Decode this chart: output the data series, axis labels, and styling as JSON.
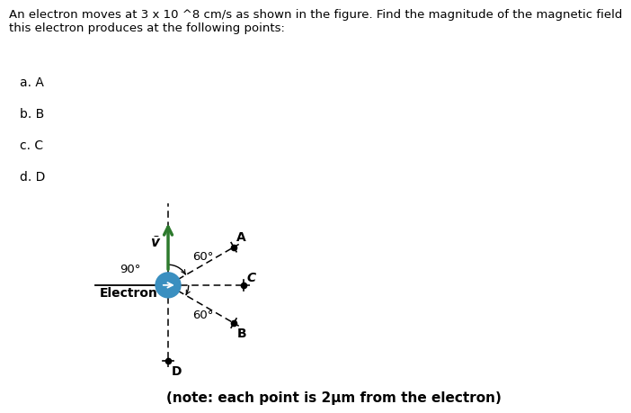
{
  "title_text": "An electron moves at 3 x 10 ^8 cm/s as shown in the figure. Find the magnitude of the magnetic field\nthis electron produces at the following points:",
  "items": [
    "a. A",
    "b. B",
    "c. C",
    "d. D"
  ],
  "note": "(note: each point is 2μm from the electron)",
  "electron_label": "Electron",
  "velocity_label": "ṽ",
  "angle_90_label": "90°",
  "angle_60_upper_label": "60°",
  "angle_60_lower_label": "60°",
  "electron_color": "#3a8fc0",
  "arrow_color": "#2d7a2d",
  "background_color": "#ffffff",
  "text_color": "#000000",
  "title_fontsize": 9.5,
  "item_fontsize": 10,
  "diagram_fontsize": 10,
  "note_fontsize": 11
}
